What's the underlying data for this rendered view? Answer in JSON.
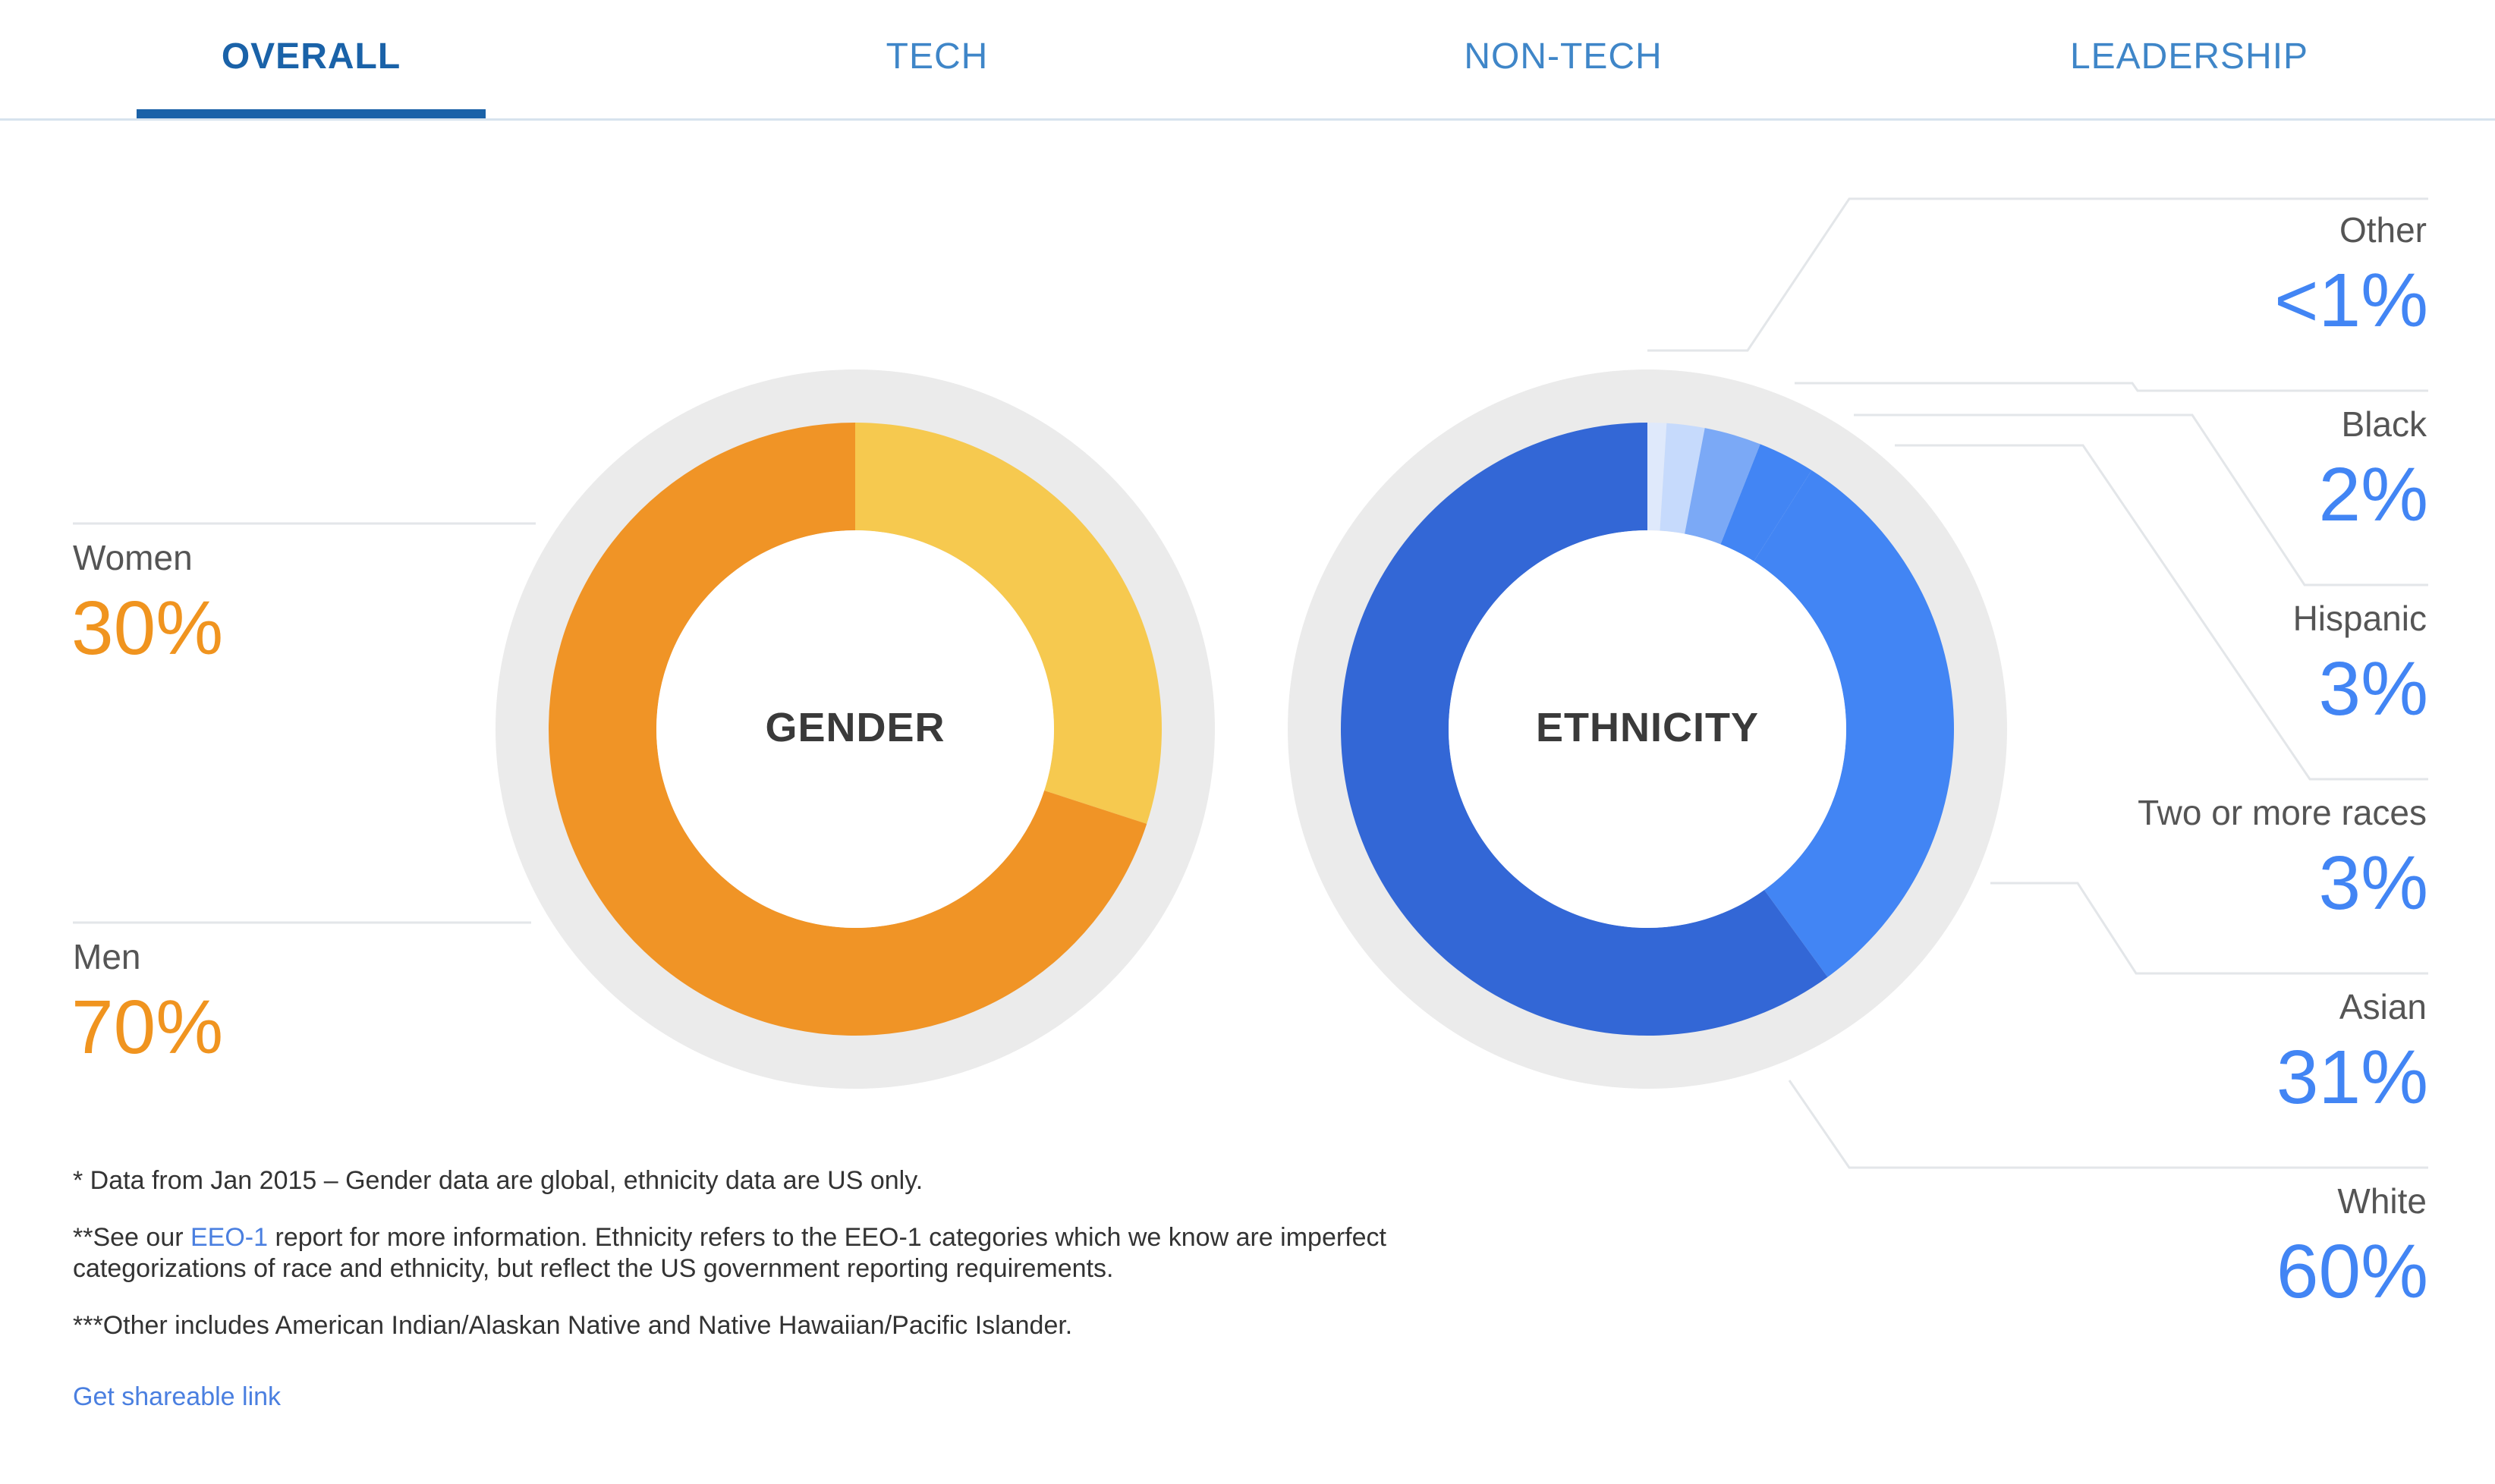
{
  "tabs": [
    {
      "label": "OVERALL",
      "active": true
    },
    {
      "label": "TECH",
      "active": false
    },
    {
      "label": "NON-TECH",
      "active": false
    },
    {
      "label": "LEADERSHIP",
      "active": false
    }
  ],
  "colors": {
    "tab_active": "#1a62a8",
    "tab": "#3f86c8",
    "ring_bg": "#ebebeb",
    "gender_pct": "#f0941f",
    "ethnicity_pct": "#4285f4",
    "leader_line": "#e3e6e9"
  },
  "chart_data": [
    {
      "type": "pie",
      "title": "GENDER",
      "categories": [
        "Women",
        "Men"
      ],
      "labels": [
        "30%",
        "70%"
      ],
      "values": [
        30,
        70
      ],
      "colors": [
        "#f6c94f",
        "#f09426"
      ]
    },
    {
      "type": "pie",
      "title": "ETHNICITY",
      "categories": [
        "Other",
        "Black",
        "Hispanic",
        "Two or more races",
        "Asian",
        "White"
      ],
      "labels": [
        "<1%",
        "2%",
        "3%",
        "3%",
        "31%",
        "60%"
      ],
      "values": [
        1,
        2,
        3,
        3,
        31,
        60
      ],
      "colors": [
        "#dfe9fb",
        "#c6dafc",
        "#7ba9f6",
        "#4285f4",
        "#4285f4",
        "#3367d6"
      ]
    }
  ],
  "footnotes": {
    "note1": "* Data from Jan 2015 – Gender data are global, ethnicity data are US only.",
    "note2_prefix": "**See our ",
    "note2_link": "EEO-1",
    "note2_suffix": " report for more information. Ethnicity refers to the EEO-1 categories which we know are imperfect categorizations of race and ethnicity, but reflect the US government reporting requirements.",
    "note3": "***Other includes American Indian/Alaskan Native and Native Hawaiian/Pacific Islander."
  },
  "share_link": "Get shareable link"
}
